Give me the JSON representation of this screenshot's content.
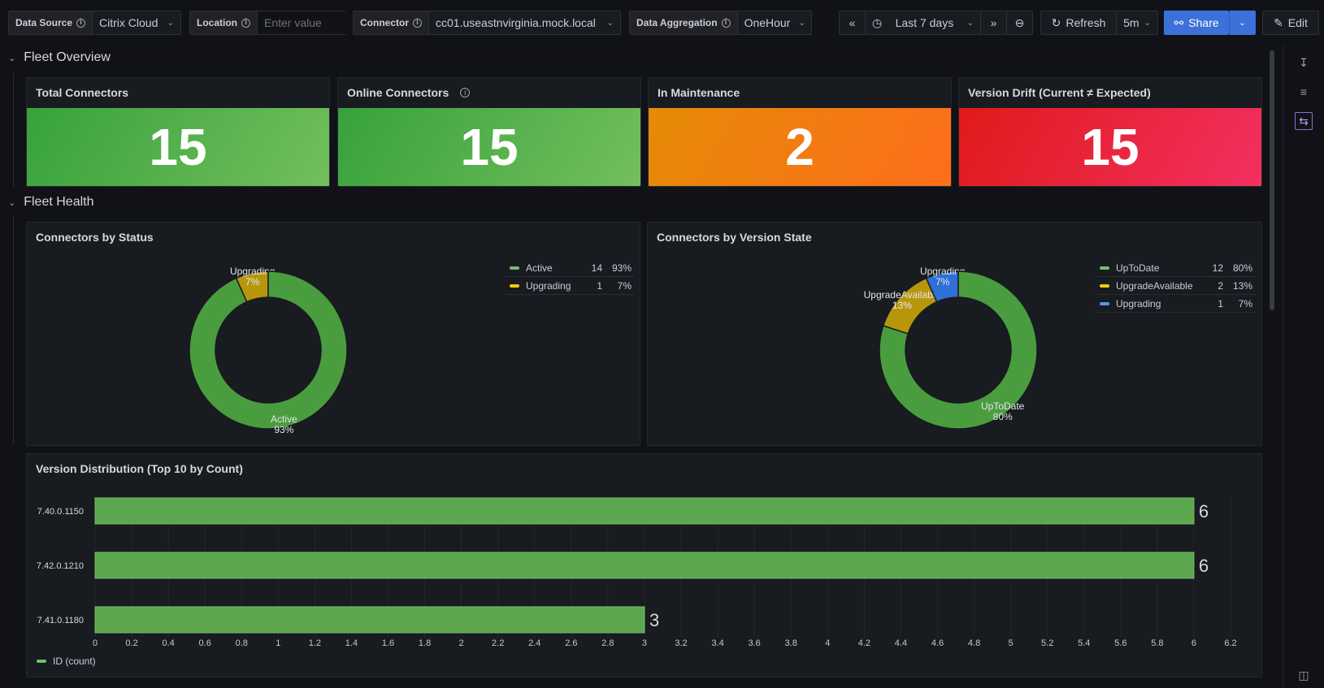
{
  "toolbar": {
    "datasource": {
      "label": "Data Source",
      "value": "Citrix Cloud"
    },
    "location": {
      "label": "Location",
      "placeholder": "Enter value"
    },
    "connector": {
      "label": "Connector",
      "value": "cc01.useastnvirginia.mock.local"
    },
    "aggregation": {
      "label": "Data Aggregation",
      "value": "OneHour"
    },
    "time_range": "Last 7 days",
    "refresh_label": "Refresh",
    "refresh_interval": "5m",
    "share_label": "Share",
    "edit_label": "Edit"
  },
  "sections": {
    "fleet_overview": "Fleet Overview",
    "fleet_health": "Fleet Health"
  },
  "stats": [
    {
      "title": "Total Connectors",
      "value": "15",
      "gradient": [
        "#37a23c",
        "#73bf5c"
      ]
    },
    {
      "title": "Online Connectors",
      "value": "15",
      "gradient": [
        "#37a23c",
        "#73bf5c"
      ]
    },
    {
      "title": "In Maintenance",
      "value": "2",
      "gradient": [
        "#e58b06",
        "#fe6d1c"
      ]
    },
    {
      "title": "Version Drift (Current ≠ Expected)",
      "value": "15",
      "gradient": [
        "#e01a1a",
        "#f23061"
      ]
    }
  ],
  "chart_data": [
    {
      "type": "pie",
      "title": "Connectors by Status",
      "slices": [
        {
          "name": "Active",
          "value": 14,
          "percent": "93%",
          "color": "#4a9d3f"
        },
        {
          "name": "Upgrading",
          "value": 1,
          "percent": "7%",
          "color": "#b8960c"
        }
      ],
      "legend_colors": [
        "#73bf69",
        "#f2cc0c"
      ]
    },
    {
      "type": "pie",
      "title": "Connectors by Version State",
      "slices": [
        {
          "name": "UpToDate",
          "value": 12,
          "percent": "80%",
          "color": "#4a9d3f"
        },
        {
          "name": "UpgradeAvailable",
          "value": 2,
          "percent": "13%",
          "color": "#b8960c"
        },
        {
          "name": "Upgrading",
          "value": 1,
          "percent": "7%",
          "color": "#2f6fd6"
        }
      ],
      "legend_colors": [
        "#73bf69",
        "#f2cc0c",
        "#5794f2"
      ]
    },
    {
      "type": "bar",
      "orientation": "horizontal",
      "title": "Version Distribution (Top 10 by Count)",
      "categories": [
        "7.40.0.1150",
        "7.42.0.1210",
        "7.41.0.1180"
      ],
      "values": [
        6,
        6,
        3
      ],
      "xlim": [
        0,
        6.2
      ],
      "xticks": [
        "0",
        "0.2",
        "0.4",
        "0.6",
        "0.8",
        "1",
        "1.2",
        "1.4",
        "1.6",
        "1.8",
        "2",
        "2.2",
        "2.4",
        "2.6",
        "2.8",
        "3",
        "3.2",
        "3.4",
        "3.6",
        "3.8",
        "4",
        "4.2",
        "4.4",
        "4.6",
        "4.8",
        "5",
        "5.2",
        "5.4",
        "5.6",
        "5.8",
        "6",
        "6.2"
      ],
      "series_name": "ID (count)",
      "color": "#5da650"
    }
  ]
}
